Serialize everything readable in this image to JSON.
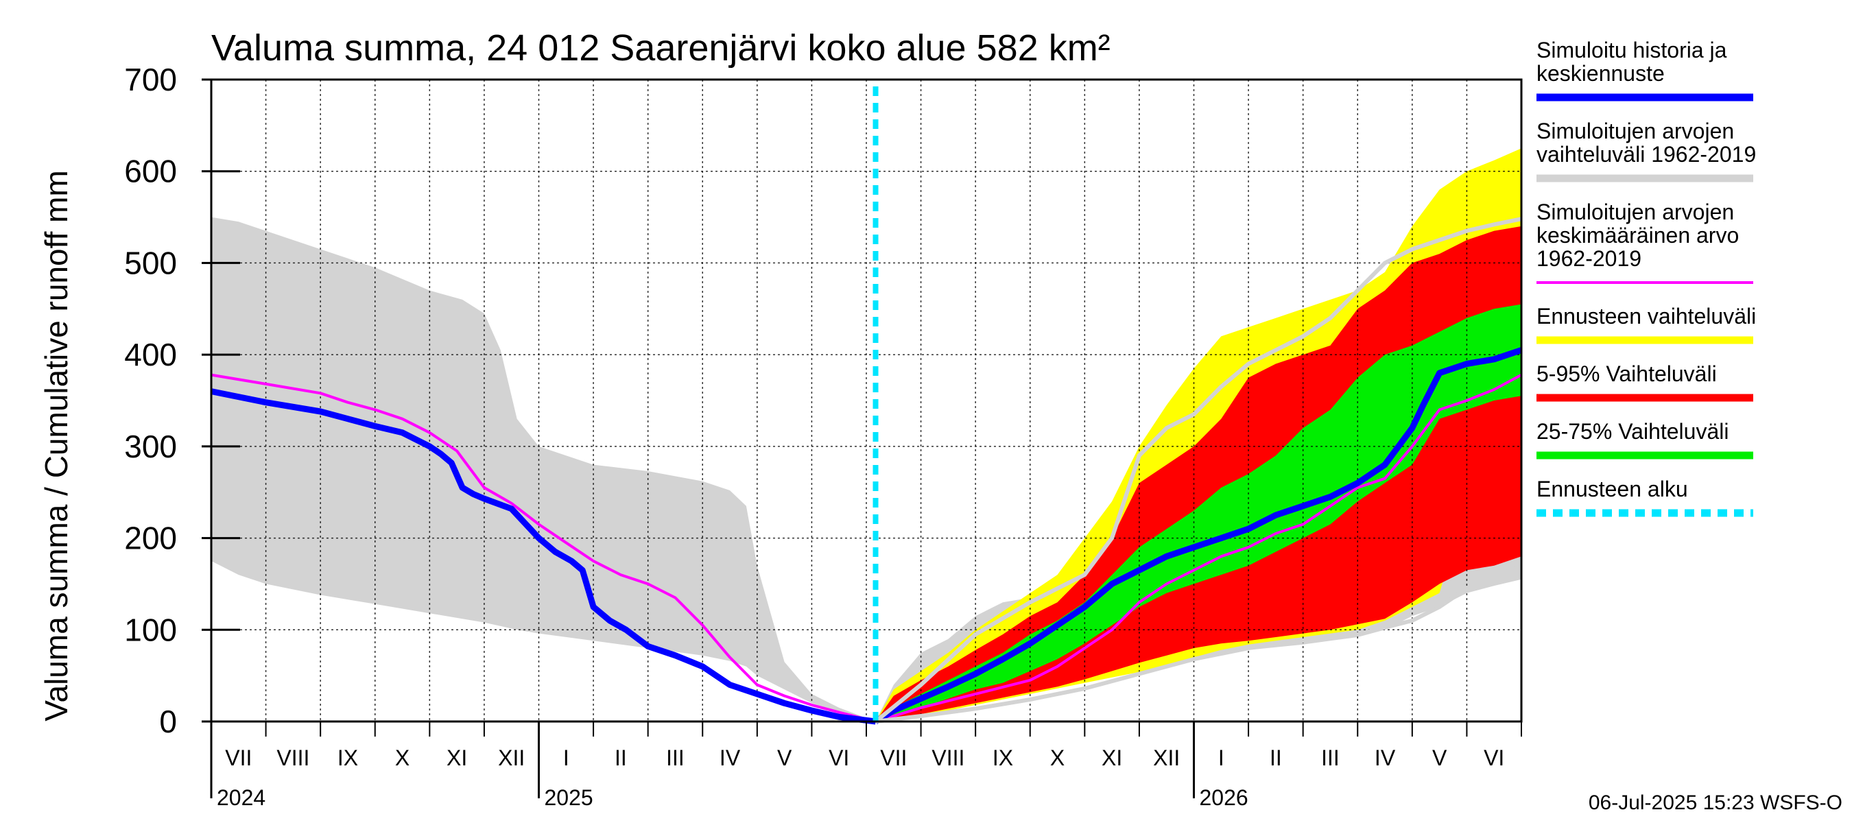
{
  "chart_data": {
    "type": "area",
    "title": "Valuma summa, 24 012 Saarenjärvi koko alue 582 km²",
    "ylabel": "Valuma summa / Cumulative runoff    mm",
    "xlabel": "",
    "ylim": [
      0,
      700
    ],
    "yticks": [
      0,
      100,
      200,
      300,
      400,
      500,
      600,
      700
    ],
    "grid": true,
    "months": [
      "VII",
      "VIII",
      "IX",
      "X",
      "XI",
      "XII",
      "I",
      "II",
      "III",
      "IV",
      "V",
      "VI",
      "VII",
      "VIII",
      "IX",
      "X",
      "XI",
      "XII",
      "I",
      "II",
      "III",
      "IV",
      "V",
      "VI"
    ],
    "years": [
      {
        "label": "2024",
        "month_index": 0
      },
      {
        "label": "2025",
        "month_index": 6
      },
      {
        "label": "2026",
        "month_index": 18
      }
    ],
    "x_unit": "months since 1-Jul-2024",
    "forecast_start": 12.17,
    "series": [
      {
        "name": "Simuloitujen arvojen vaihteluväli 1962-2019",
        "kind": "band",
        "color": "#d3d3d3",
        "x": [
          0,
          0.5,
          1,
          2,
          3,
          4,
          4.6,
          5,
          5.3,
          5.6,
          6,
          7,
          8,
          9,
          9.5,
          9.8,
          10,
          10.5,
          11,
          11.5,
          12.17
        ],
        "upper": [
          550,
          545,
          535,
          515,
          495,
          470,
          460,
          445,
          405,
          330,
          300,
          280,
          273,
          262,
          252,
          235,
          170,
          65,
          30,
          15,
          0
        ],
        "lower": [
          175,
          160,
          150,
          138,
          128,
          118,
          112,
          108,
          104,
          100,
          96,
          88,
          80,
          72,
          66,
          60,
          50,
          35,
          20,
          10,
          0
        ]
      },
      {
        "name": "Simuloitujen arvojen vaihteluväli 1962-2019",
        "kind": "band",
        "color": "#d3d3d3",
        "x": [
          12.17,
          12.5,
          13,
          13.5,
          14,
          14.5,
          15,
          15.5,
          16,
          16.5,
          17,
          17.5,
          18,
          19,
          20,
          20.5,
          21,
          21.5,
          22,
          22.5,
          23,
          23.5,
          24
        ],
        "upper": [
          0,
          40,
          75,
          90,
          115,
          130,
          135,
          140,
          150,
          155,
          160,
          170,
          175,
          180,
          185,
          190,
          192,
          195,
          200,
          205,
          210,
          205,
          210
        ],
        "lower": [
          0,
          3,
          8,
          14,
          20,
          26,
          32,
          38,
          44,
          50,
          56,
          62,
          70,
          78,
          84,
          88,
          92,
          100,
          115,
          125,
          140,
          148,
          155
        ]
      },
      {
        "name": "Ennusteen vaihteluväli",
        "kind": "band",
        "color": "#ffff00",
        "x": [
          12.17,
          12.5,
          13,
          13.5,
          14,
          14.5,
          15,
          15.5,
          16,
          16.5,
          17,
          17.5,
          18,
          18.5,
          19,
          19.5,
          20,
          20.5,
          21,
          21.5,
          22,
          22.5,
          23,
          23.5,
          24
        ],
        "upper": [
          0,
          35,
          55,
          75,
          100,
          120,
          140,
          160,
          200,
          240,
          300,
          345,
          385,
          420,
          430,
          440,
          450,
          460,
          470,
          490,
          540,
          580,
          600,
          612,
          625
        ],
        "lower": [
          0,
          2,
          6,
          12,
          18,
          24,
          30,
          36,
          42,
          48,
          54,
          60,
          70,
          78,
          84,
          88,
          92,
          96,
          100,
          110,
          125,
          140,
          240,
          255,
          265
        ]
      },
      {
        "name": "5-95% Vaihteluväli",
        "kind": "band",
        "color": "#ff0000",
        "x": [
          12.17,
          12.5,
          13,
          13.5,
          14,
          14.5,
          15,
          15.5,
          16,
          16.5,
          17,
          17.5,
          18,
          18.5,
          19,
          19.5,
          20,
          20.5,
          21,
          21.5,
          22,
          22.5,
          23,
          23.5,
          24
        ],
        "upper": [
          0,
          28,
          45,
          60,
          78,
          95,
          115,
          130,
          160,
          200,
          260,
          280,
          300,
          330,
          375,
          390,
          400,
          410,
          450,
          470,
          500,
          510,
          525,
          535,
          540
        ],
        "lower": [
          0,
          3,
          8,
          14,
          20,
          26,
          32,
          38,
          46,
          55,
          64,
          72,
          80,
          85,
          88,
          92,
          96,
          100,
          106,
          112,
          130,
          150,
          165,
          170,
          180
        ]
      },
      {
        "name": "25-75% Vaihteluväli",
        "kind": "band",
        "color": "#00ee00",
        "x": [
          12.17,
          12.5,
          13,
          13.5,
          14,
          14.5,
          15,
          15.5,
          16,
          16.5,
          17,
          17.5,
          18,
          18.5,
          19,
          19.5,
          20,
          20.5,
          21,
          21.5,
          22,
          22.5,
          23,
          23.5,
          24
        ],
        "upper": [
          0,
          15,
          30,
          45,
          60,
          75,
          95,
          110,
          130,
          160,
          190,
          210,
          230,
          255,
          270,
          290,
          320,
          340,
          375,
          400,
          410,
          425,
          440,
          450,
          455
        ],
        "lower": [
          0,
          5,
          15,
          25,
          35,
          42,
          55,
          68,
          85,
          105,
          125,
          140,
          150,
          160,
          170,
          185,
          200,
          215,
          240,
          260,
          280,
          330,
          340,
          350,
          355
        ]
      },
      {
        "name": "Simuloitujen arvojen keskimääräinen arvo 1962-2019",
        "kind": "line",
        "color": "#ff00ff",
        "x": [
          0,
          1,
          2,
          2.5,
          3,
          3.5,
          4,
          4.5,
          5,
          5.5,
          6,
          6.5,
          7,
          7.5,
          8,
          8.5,
          9,
          9.5,
          10,
          10.5,
          11,
          11.5,
          12.17
        ],
        "y": [
          378,
          368,
          358,
          348,
          340,
          330,
          315,
          295,
          255,
          238,
          215,
          195,
          175,
          160,
          150,
          135,
          105,
          70,
          40,
          28,
          18,
          10,
          0
        ]
      },
      {
        "name": "Simuloitujen arvojen keskimääräinen arvo 1962-2019",
        "kind": "line",
        "color": "#ff00ff",
        "x": [
          12.17,
          13,
          14,
          15,
          15.5,
          16,
          16.5,
          17,
          17.5,
          18,
          18.5,
          19,
          19.5,
          20,
          20.5,
          21,
          21.5,
          22,
          22.5,
          23,
          23.5,
          24
        ],
        "y": [
          0,
          15,
          30,
          45,
          60,
          80,
          100,
          130,
          150,
          165,
          180,
          190,
          205,
          215,
          235,
          255,
          265,
          300,
          340,
          350,
          362,
          378
        ]
      },
      {
        "name": "Simuloitu historia ja keskiennuste",
        "kind": "line",
        "color": "#0000ff",
        "x": [
          0,
          1,
          2,
          2.5,
          3,
          3.5,
          4,
          4.2,
          4.4,
          4.6,
          4.8,
          5,
          5.5,
          6,
          6.3,
          6.6,
          6.8,
          7,
          7.3,
          7.6,
          8,
          8.5,
          9,
          9.5,
          10,
          10.5,
          11,
          11.5,
          12.17
        ],
        "y": [
          360,
          348,
          338,
          330,
          322,
          315,
          300,
          292,
          282,
          255,
          248,
          243,
          232,
          200,
          185,
          175,
          165,
          125,
          110,
          100,
          82,
          72,
          60,
          40,
          30,
          20,
          12,
          5,
          0
        ]
      },
      {
        "name": "Simuloitu historia ja keskiennuste",
        "kind": "line",
        "color": "#0000ff",
        "x": [
          12.17,
          12.5,
          13,
          13.5,
          14,
          14.5,
          15,
          15.5,
          16,
          16.5,
          17,
          17.5,
          18,
          18.5,
          19,
          19.5,
          20,
          20.5,
          21,
          21.5,
          22,
          22.2,
          22.5,
          23,
          23.5,
          24
        ],
        "y": [
          0,
          12,
          25,
          38,
          52,
          68,
          85,
          105,
          125,
          150,
          165,
          180,
          190,
          200,
          210,
          225,
          235,
          245,
          260,
          280,
          320,
          345,
          380,
          390,
          395,
          405
        ]
      },
      {
        "name": "Simuloitujen arvojen vaihteluväli 1962-2019 (max)",
        "kind": "line",
        "color": "#d3d3d3",
        "x": [
          12.17,
          13,
          14,
          15,
          15.5,
          16,
          16.5,
          17,
          17.5,
          18,
          18.5,
          19,
          19.5,
          20,
          20.5,
          21,
          21.5,
          22,
          22.5,
          23,
          23.5,
          24
        ],
        "y": [
          0,
          40,
          95,
          130,
          145,
          160,
          200,
          290,
          320,
          335,
          365,
          390,
          405,
          420,
          440,
          470,
          500,
          515,
          525,
          535,
          542,
          548
        ]
      },
      {
        "name": "Simuloitujen arvojen vaihteluväli 1962-2019 (min)",
        "kind": "line",
        "color": "#d3d3d3",
        "x": [
          12.17,
          13,
          14,
          15,
          16,
          17,
          18,
          19,
          20,
          21,
          22,
          22.5,
          23,
          23.5,
          24
        ],
        "y": [
          0,
          6,
          14,
          24,
          36,
          52,
          68,
          80,
          88,
          95,
          110,
          125,
          145,
          158,
          170
        ]
      }
    ],
    "legend": [
      {
        "lines": [
          "Simuloitu historia ja",
          "keskiennuste"
        ],
        "color": "#0000ff",
        "style": "solid"
      },
      {
        "lines": [
          "Simuloitujen arvojen",
          "vaihteluväli 1962-2019"
        ],
        "color": "#d3d3d3",
        "style": "solid"
      },
      {
        "lines": [
          "Simuloitujen arvojen",
          "keskimääräinen arvo",
          "   1962-2019"
        ],
        "color": "#ff00ff",
        "style": "thin"
      },
      {
        "lines": [
          "Ennusteen vaihteluväli"
        ],
        "color": "#ffff00",
        "style": "solid"
      },
      {
        "lines": [
          "5-95% Vaihteluväli"
        ],
        "color": "#ff0000",
        "style": "solid"
      },
      {
        "lines": [
          "25-75% Vaihteluväli"
        ],
        "color": "#00ee00",
        "style": "solid"
      },
      {
        "lines": [
          "Ennusteen alku"
        ],
        "color": "#00e5ff",
        "style": "dashed"
      }
    ],
    "timestamp": "06-Jul-2025 15:23 WSFS-O"
  }
}
